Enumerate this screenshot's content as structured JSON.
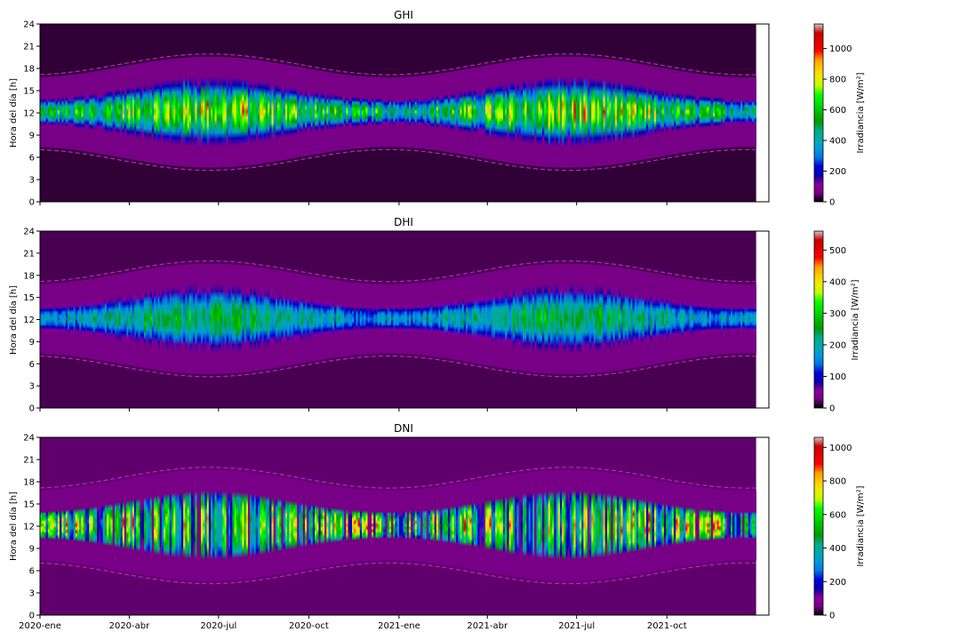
{
  "chart_data": [
    {
      "type": "heatmap",
      "title": "GHI",
      "ylabel": "Hora del día [h]",
      "ylim": [
        0,
        24
      ],
      "yticks": [
        0,
        3,
        6,
        9,
        12,
        15,
        18,
        21,
        24
      ],
      "xlabel": "",
      "xticks": [
        "2020-ene",
        "2020-abr",
        "2020-jul",
        "2020-oct",
        "2021-ene",
        "2021-abr",
        "2021-jul",
        "2021-oct"
      ],
      "x_range": [
        "2020-01-01",
        "2022-01-13"
      ],
      "data_end": "2021-12-31",
      "colorbar": {
        "label": "Irradiancia [W/m²]",
        "range": [
          0,
          1160
        ],
        "ticks": [
          0,
          200,
          400,
          600,
          800,
          1000
        ]
      },
      "daylight_bounds": {
        "sunrise": [
          7.4,
          4.6
        ],
        "sunset": [
          16.8,
          19.6
        ]
      },
      "peak_noon_value": {
        "winter": 700,
        "summer": 1000
      }
    },
    {
      "type": "heatmap",
      "title": "DHI",
      "ylabel": "Hora del día [h]",
      "ylim": [
        0,
        24
      ],
      "yticks": [
        0,
        3,
        6,
        9,
        12,
        15,
        18,
        21,
        24
      ],
      "xlabel": "",
      "colorbar": {
        "label": "Irradiancia [W/m²]",
        "range": [
          0,
          560
        ],
        "ticks": [
          0,
          100,
          200,
          300,
          400,
          500
        ]
      },
      "daylight_bounds": {
        "sunrise": [
          7.4,
          4.6
        ],
        "sunset": [
          16.8,
          19.6
        ]
      },
      "peak_noon_value": {
        "winter": 190,
        "summer": 270
      }
    },
    {
      "type": "heatmap",
      "title": "DNI",
      "ylabel": "Hora del día [h]",
      "ylim": [
        0,
        24
      ],
      "yticks": [
        0,
        3,
        6,
        9,
        12,
        15,
        18,
        21,
        24
      ],
      "xlabel": "",
      "colorbar": {
        "label": "Irradiancia [W/m²]",
        "range": [
          0,
          1060
        ],
        "ticks": [
          0,
          200,
          400,
          600,
          800,
          1000
        ]
      },
      "daylight_bounds": {
        "sunrise": [
          7.4,
          4.6
        ],
        "sunset": [
          16.8,
          19.6
        ]
      },
      "peak_noon_value": {
        "winter": 900,
        "summer": 850
      }
    }
  ]
}
